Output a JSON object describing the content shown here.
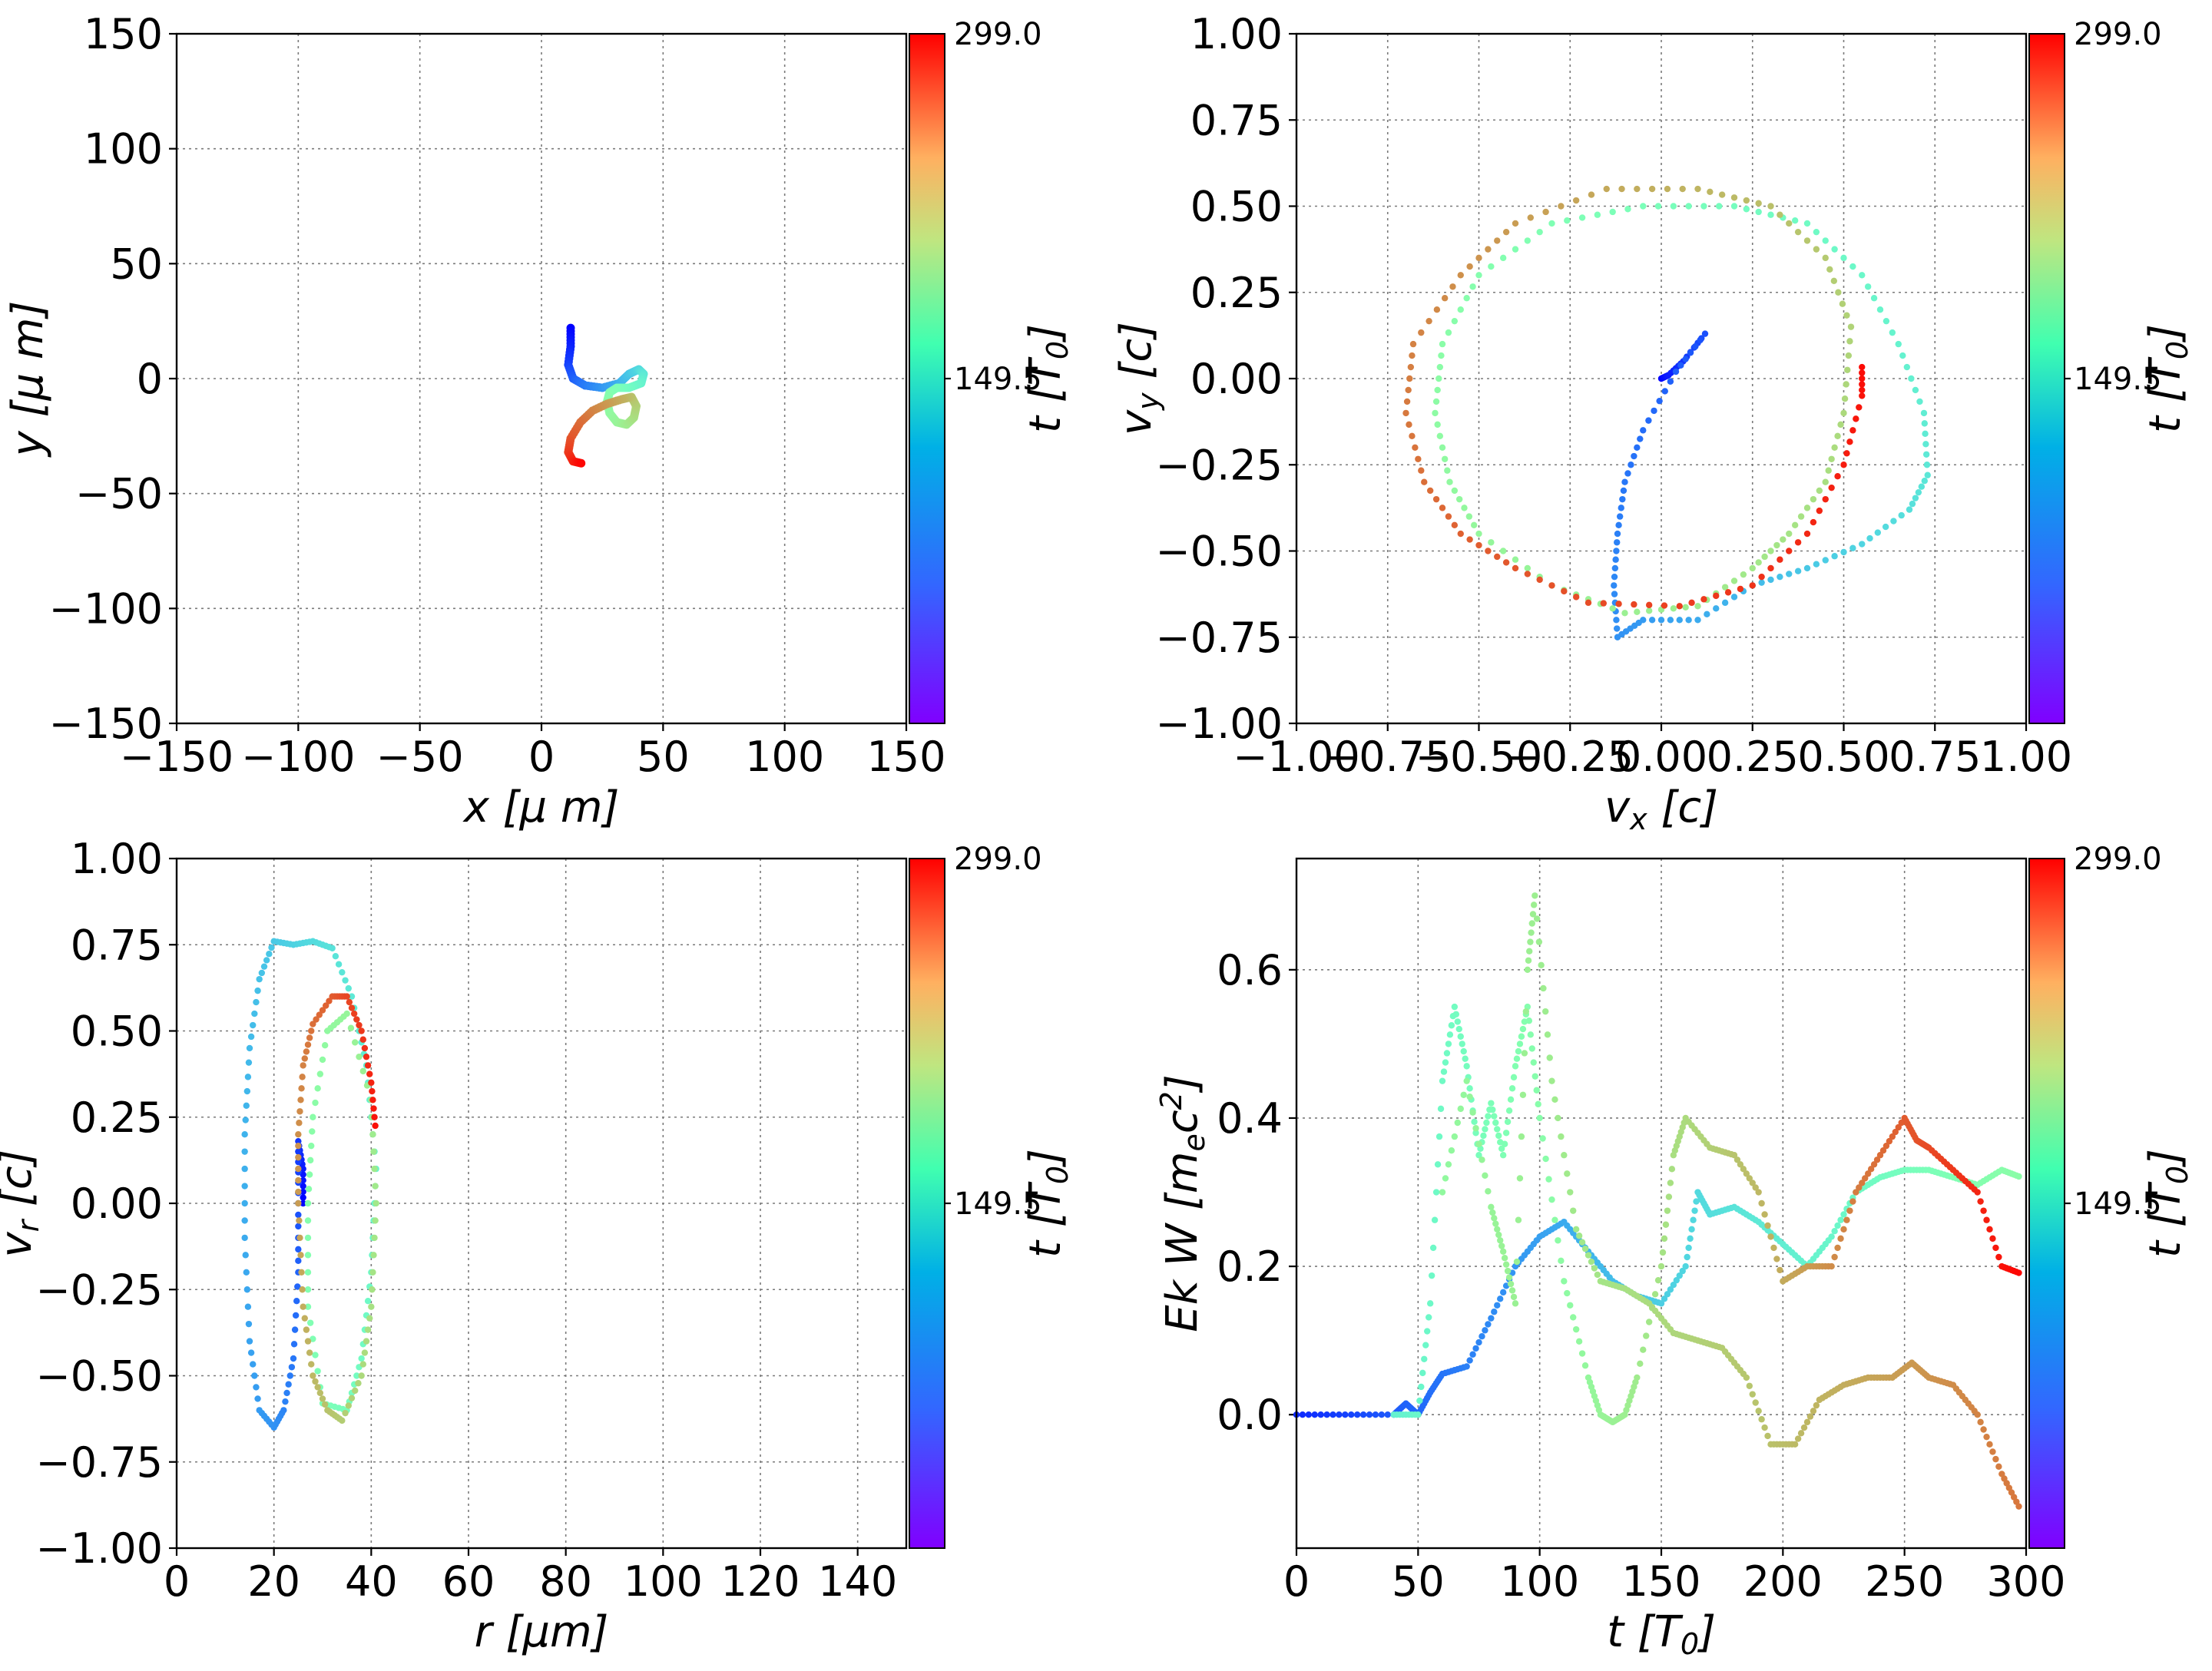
{
  "colormap": "rainbow",
  "colors": {
    "background": "#ffffff",
    "axis": "#000000",
    "grid": "#7a7a7a"
  },
  "chart_data": [
    {
      "id": "xy",
      "type": "scatter",
      "xlabel": "x  [μ m]",
      "ylabel": "y  [μ m]",
      "xlim": [
        -150,
        150
      ],
      "ylim": [
        -150,
        150
      ],
      "xticks": [
        "−150",
        "−100",
        "−50",
        "0",
        "50",
        "100",
        "150"
      ],
      "yticks": [
        "150",
        "100",
        "50",
        "0",
        "−50",
        "−100",
        "−150"
      ],
      "grid": true,
      "colorbar": {
        "label": "t [T0]",
        "ticks": [
          "299.0",
          "149.5"
        ],
        "range": [
          0,
          299
        ]
      },
      "points": [
        [
          12,
          22,
          0
        ],
        [
          12,
          14,
          12
        ],
        [
          11,
          6,
          24
        ],
        [
          13,
          0,
          36
        ],
        [
          18,
          -3,
          48
        ],
        [
          25,
          -4,
          60
        ],
        [
          32,
          -2,
          72
        ],
        [
          36,
          2,
          84
        ],
        [
          40,
          4,
          96
        ],
        [
          42,
          2,
          108
        ],
        [
          41,
          -2,
          120
        ],
        [
          36,
          -4,
          132
        ],
        [
          31,
          -4,
          144
        ],
        [
          28,
          -6,
          152
        ],
        [
          27,
          -10,
          160
        ],
        [
          28,
          -15,
          168
        ],
        [
          31,
          -19,
          176
        ],
        [
          35,
          -20,
          186
        ],
        [
          38,
          -17,
          196
        ],
        [
          39,
          -12,
          206
        ],
        [
          37,
          -8,
          216
        ],
        [
          33,
          -9,
          226
        ],
        [
          27,
          -11,
          236
        ],
        [
          21,
          -14,
          246
        ],
        [
          16,
          -19,
          256
        ],
        [
          12,
          -26,
          266
        ],
        [
          11,
          -32,
          276
        ],
        [
          13,
          -36,
          286
        ],
        [
          17,
          -37,
          299
        ]
      ]
    },
    {
      "id": "vxvy",
      "type": "scatter",
      "xlabel": "vx [c]",
      "ylabel": "vy [c]",
      "xlim": [
        -1.0,
        1.0
      ],
      "ylim": [
        -1.0,
        1.0
      ],
      "xticks": [
        "−1.00",
        "−0.75",
        "−0.50",
        "−0.25",
        "0.00",
        "0.25",
        "0.50",
        "0.75",
        "1.00"
      ],
      "yticks": [
        "1.00",
        "0.75",
        "0.50",
        "0.25",
        "0.00",
        "−0.25",
        "−0.50",
        "−0.75",
        "−1.00"
      ],
      "grid": true,
      "colorbar": {
        "label": "t [T0]",
        "ticks": [
          "299.0",
          "149.5"
        ],
        "range": [
          0,
          299
        ]
      },
      "points": [
        [
          0.0,
          0.0,
          0
        ],
        [
          0.02,
          0.01,
          10
        ],
        [
          0.06,
          0.05,
          20
        ],
        [
          0.12,
          0.13,
          30
        ],
        [
          0.04,
          0.02,
          36
        ],
        [
          -0.05,
          -0.15,
          42
        ],
        [
          -0.1,
          -0.3,
          46
        ],
        [
          -0.12,
          -0.45,
          50
        ],
        [
          -0.13,
          -0.6,
          54
        ],
        [
          -0.12,
          -0.75,
          58
        ],
        [
          -0.05,
          -0.7,
          62
        ],
        [
          0.1,
          -0.7,
          70
        ],
        [
          0.25,
          -0.6,
          78
        ],
        [
          0.4,
          -0.55,
          86
        ],
        [
          0.55,
          -0.48,
          94
        ],
        [
          0.68,
          -0.38,
          102
        ],
        [
          0.73,
          -0.28,
          108
        ],
        [
          0.72,
          -0.1,
          114
        ],
        [
          0.65,
          0.1,
          120
        ],
        [
          0.55,
          0.3,
          126
        ],
        [
          0.4,
          0.45,
          132
        ],
        [
          0.2,
          0.5,
          138
        ],
        [
          -0.05,
          0.5,
          144
        ],
        [
          -0.3,
          0.45,
          150
        ],
        [
          -0.5,
          0.3,
          156
        ],
        [
          -0.6,
          0.1,
          162
        ],
        [
          -0.62,
          -0.1,
          166
        ],
        [
          -0.58,
          -0.3,
          170
        ],
        [
          -0.5,
          -0.45,
          174
        ],
        [
          -0.3,
          -0.6,
          178
        ],
        [
          -0.1,
          -0.68,
          182
        ],
        [
          0.1,
          -0.66,
          186
        ],
        [
          0.25,
          -0.55,
          190
        ],
        [
          0.35,
          -0.45,
          194
        ],
        [
          0.45,
          -0.3,
          198
        ],
        [
          0.5,
          -0.1,
          202
        ],
        [
          0.52,
          0.15,
          206
        ],
        [
          0.45,
          0.35,
          212
        ],
        [
          0.3,
          0.5,
          218
        ],
        [
          0.1,
          0.55,
          224
        ],
        [
          -0.15,
          0.55,
          230
        ],
        [
          -0.4,
          0.45,
          236
        ],
        [
          -0.55,
          0.3,
          242
        ],
        [
          -0.68,
          0.1,
          248
        ],
        [
          -0.7,
          -0.1,
          252
        ],
        [
          -0.65,
          -0.3,
          256
        ],
        [
          -0.55,
          -0.45,
          262
        ],
        [
          -0.4,
          -0.55,
          266
        ],
        [
          -0.2,
          -0.65,
          270
        ],
        [
          0.05,
          -0.66,
          276
        ],
        [
          0.25,
          -0.6,
          280
        ],
        [
          0.4,
          -0.45,
          284
        ],
        [
          0.5,
          -0.25,
          288
        ],
        [
          0.55,
          -0.05,
          292
        ],
        [
          0.55,
          0.05,
          296
        ]
      ]
    },
    {
      "id": "rvr",
      "type": "scatter",
      "xlabel": "r [μm]",
      "ylabel": "vr [c]",
      "xlim": [
        0,
        150
      ],
      "ylim": [
        -1.0,
        1.0
      ],
      "xticks": [
        "0",
        "20",
        "40",
        "60",
        "80",
        "100",
        "120",
        "140"
      ],
      "yticks": [
        "1.00",
        "0.75",
        "0.50",
        "0.25",
        "0.00",
        "−0.25",
        "−0.50",
        "−0.75",
        "−1.00"
      ],
      "grid": true,
      "colorbar": {
        "label": "t [T0]",
        "ticks": [
          "299.0",
          "149.5"
        ],
        "range": [
          0,
          299
        ]
      },
      "points": [
        [
          26,
          0.0,
          0
        ],
        [
          26,
          0.1,
          10
        ],
        [
          25,
          0.18,
          20
        ],
        [
          25,
          0.0,
          30
        ],
        [
          25,
          -0.2,
          38
        ],
        [
          24,
          -0.45,
          46
        ],
        [
          22,
          -0.6,
          52
        ],
        [
          20,
          -0.65,
          58
        ],
        [
          17,
          -0.6,
          62
        ],
        [
          15,
          -0.4,
          66
        ],
        [
          14,
          -0.1,
          70
        ],
        [
          14,
          0.2,
          74
        ],
        [
          15,
          0.45,
          78
        ],
        [
          17,
          0.65,
          82
        ],
        [
          20,
          0.76,
          86
        ],
        [
          24,
          0.75,
          92
        ],
        [
          28,
          0.76,
          98
        ],
        [
          32,
          0.74,
          104
        ],
        [
          36,
          0.6,
          110
        ],
        [
          39,
          0.4,
          116
        ],
        [
          41,
          0.1,
          122
        ],
        [
          40,
          -0.2,
          128
        ],
        [
          38,
          -0.45,
          134
        ],
        [
          35,
          -0.6,
          140
        ],
        [
          30,
          -0.58,
          146
        ],
        [
          27,
          -0.3,
          152
        ],
        [
          27,
          0.0,
          158
        ],
        [
          28,
          0.25,
          162
        ],
        [
          31,
          0.5,
          170
        ],
        [
          35,
          0.55,
          176
        ],
        [
          40,
          0.3,
          184
        ],
        [
          41,
          0.0,
          190
        ],
        [
          40,
          -0.3,
          196
        ],
        [
          38,
          -0.5,
          202
        ],
        [
          34,
          -0.63,
          210
        ],
        [
          31,
          -0.6,
          216
        ],
        [
          28,
          -0.5,
          222
        ],
        [
          26,
          -0.3,
          228
        ],
        [
          25,
          0.0,
          236
        ],
        [
          25,
          0.2,
          242
        ],
        [
          26,
          0.4,
          248
        ],
        [
          28,
          0.52,
          256
        ],
        [
          32,
          0.6,
          264
        ],
        [
          35,
          0.6,
          272
        ],
        [
          38,
          0.5,
          278
        ],
        [
          40,
          0.35,
          286
        ],
        [
          41,
          0.2,
          294
        ]
      ]
    },
    {
      "id": "ekw",
      "type": "scatter",
      "xlabel": "t [T0]",
      "ylabel": "Ek W [mec2]",
      "xlim": [
        0,
        300
      ],
      "ylim": [
        -0.18,
        0.75
      ],
      "xticks": [
        "0",
        "50",
        "100",
        "150",
        "200",
        "250",
        "300"
      ],
      "yticks": [
        "0.6",
        "0.4",
        "0.2",
        "0.0"
      ],
      "grid": true,
      "colorbar": {
        "label": "t [T0]",
        "ticks": [
          "299.0",
          "149.5"
        ],
        "range": [
          0,
          299
        ]
      },
      "series": [
        {
          "name": "",
          "color_by": "phase_a",
          "points": [
            [
              0,
              0.0
            ],
            [
              20,
              0.0
            ],
            [
              40,
              0.0
            ],
            [
              45,
              0.015
            ],
            [
              50,
              0.0
            ],
            [
              55,
              0.03
            ],
            [
              60,
              0.055
            ],
            [
              70,
              0.065
            ],
            [
              80,
              0.13
            ],
            [
              90,
              0.2
            ],
            [
              100,
              0.24
            ],
            [
              110,
              0.26
            ],
            [
              120,
              0.22
            ],
            [
              130,
              0.18
            ],
            [
              140,
              0.16
            ],
            [
              150,
              0.15
            ],
            [
              160,
              0.2
            ],
            [
              165,
              0.3
            ],
            [
              170,
              0.27
            ],
            [
              180,
              0.28
            ],
            [
              190,
              0.26
            ],
            [
              200,
              0.23
            ],
            [
              210,
              0.2
            ],
            [
              220,
              0.24
            ],
            [
              230,
              0.3
            ],
            [
              240,
              0.32
            ],
            [
              250,
              0.33
            ],
            [
              260,
              0.33
            ],
            [
              270,
              0.32
            ],
            [
              280,
              0.31
            ],
            [
              290,
              0.33
            ],
            [
              298,
              0.32
            ]
          ]
        },
        {
          "name": "",
          "color_by": "phase_b",
          "points": [
            [
              40,
              0.0
            ],
            [
              50,
              0.0
            ],
            [
              55,
              0.15
            ],
            [
              60,
              0.45
            ],
            [
              65,
              0.55
            ],
            [
              70,
              0.47
            ],
            [
              75,
              0.35
            ],
            [
              80,
              0.42
            ],
            [
              85,
              0.35
            ],
            [
              90,
              0.47
            ],
            [
              95,
              0.55
            ],
            [
              100,
              0.4
            ],
            [
              110,
              0.18
            ],
            [
              120,
              0.05
            ],
            [
              125,
              0.0
            ],
            [
              130,
              -0.01
            ],
            [
              135,
              0.0
            ],
            [
              140,
              0.05
            ],
            [
              150,
              0.2
            ],
            [
              155,
              0.35
            ],
            [
              160,
              0.4
            ],
            [
              170,
              0.36
            ],
            [
              180,
              0.35
            ],
            [
              190,
              0.3
            ],
            [
              200,
              0.18
            ],
            [
              210,
              0.2
            ],
            [
              220,
              0.2
            ],
            [
              230,
              0.3
            ],
            [
              240,
              0.35
            ],
            [
              250,
              0.4
            ],
            [
              255,
              0.37
            ],
            [
              260,
              0.36
            ],
            [
              270,
              0.33
            ],
            [
              280,
              0.3
            ],
            [
              290,
              0.2
            ],
            [
              298,
              0.19
            ]
          ]
        },
        {
          "name": "",
          "color_by": "phase_c",
          "points": [
            [
              60,
              0.3
            ],
            [
              70,
              0.45
            ],
            [
              80,
              0.28
            ],
            [
              85,
              0.22
            ],
            [
              90,
              0.15
            ],
            [
              95,
              0.6
            ],
            [
              98,
              0.7
            ],
            [
              105,
              0.45
            ],
            [
              115,
              0.25
            ],
            [
              125,
              0.18
            ],
            [
              135,
              0.17
            ],
            [
              145,
              0.15
            ],
            [
              155,
              0.11
            ],
            [
              165,
              0.1
            ],
            [
              175,
              0.09
            ],
            [
              185,
              0.05
            ],
            [
              195,
              -0.04
            ],
            [
              205,
              -0.04
            ],
            [
              215,
              0.02
            ],
            [
              225,
              0.04
            ],
            [
              235,
              0.05
            ],
            [
              245,
              0.05
            ],
            [
              253,
              0.07
            ],
            [
              260,
              0.05
            ],
            [
              270,
              0.04
            ],
            [
              280,
              0.0
            ],
            [
              290,
              -0.08
            ],
            [
              298,
              -0.13
            ]
          ]
        }
      ]
    }
  ]
}
